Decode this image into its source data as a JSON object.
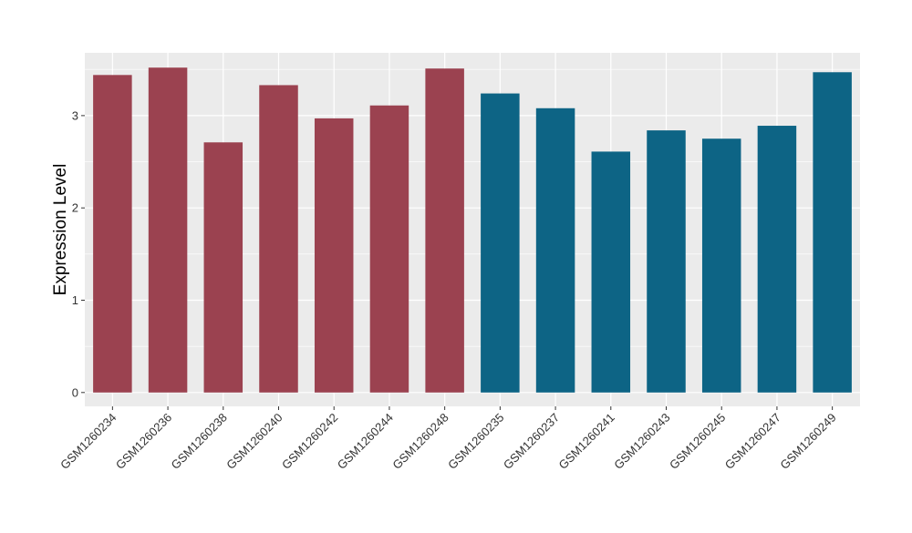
{
  "chart_data": {
    "type": "bar",
    "title": "",
    "xlabel": "",
    "ylabel": "Expression Level",
    "ylim": [
      -0.15,
      3.68
    ],
    "yticks": [
      0,
      1,
      2,
      3
    ],
    "grid": true,
    "legend": "none",
    "categories": [
      "GSM1260234",
      "GSM1260236",
      "GSM1260238",
      "GSM1260240",
      "GSM1260242",
      "GSM1260244",
      "GSM1260248",
      "GSM1260235",
      "GSM1260237",
      "GSM1260241",
      "GSM1260243",
      "GSM1260245",
      "GSM1260247",
      "GSM1260249"
    ],
    "values": [
      3.44,
      3.52,
      2.71,
      3.33,
      2.97,
      3.11,
      3.51,
      3.24,
      3.08,
      2.61,
      2.84,
      2.75,
      2.89,
      3.47
    ],
    "group_index": [
      0,
      0,
      0,
      0,
      0,
      0,
      0,
      1,
      1,
      1,
      1,
      1,
      1,
      1
    ],
    "colors": [
      "#9B4250",
      "#0D6485"
    ],
    "panel_background": "#EBEBEB"
  }
}
